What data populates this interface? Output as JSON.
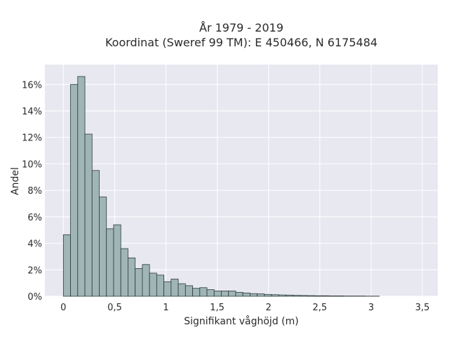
{
  "chart_data": {
    "type": "bar",
    "title": "År 1979 - 2019",
    "subtitle": "Koordinat (Sweref 99 TM): E 450466, N 6175484",
    "xlabel": "Signifikant våghöjd (m)",
    "ylabel": "Andel",
    "xlim": [
      -0.18,
      3.65
    ],
    "ylim": [
      0,
      0.175
    ],
    "grid": true,
    "bin_width": 0.07,
    "bin_start": 0.0,
    "x_ticks": [
      0,
      0.5,
      1,
      1.5,
      2,
      2.5,
      3,
      3.5
    ],
    "x_tick_labels": [
      "0",
      "0,5",
      "1",
      "1,5",
      "2",
      "2,5",
      "3",
      "3,5"
    ],
    "y_ticks": [
      0,
      0.02,
      0.04,
      0.06,
      0.08,
      0.1,
      0.12,
      0.14,
      0.16
    ],
    "y_tick_labels": [
      "0%",
      "2%",
      "4%",
      "6%",
      "8%",
      "10%",
      "12%",
      "14%",
      "16%"
    ],
    "values": [
      0.0465,
      0.16,
      0.166,
      0.1225,
      0.095,
      0.075,
      0.051,
      0.054,
      0.036,
      0.029,
      0.021,
      0.024,
      0.0175,
      0.016,
      0.011,
      0.013,
      0.0095,
      0.008,
      0.006,
      0.0065,
      0.005,
      0.004,
      0.004,
      0.004,
      0.003,
      0.0025,
      0.002,
      0.0018,
      0.0014,
      0.0012,
      0.001,
      0.0009,
      0.0007,
      0.0006,
      0.0005,
      0.0004,
      0.0004,
      0.0003,
      0.0003,
      0.0002,
      0.0002,
      0.0002,
      0.0001,
      0.0001
    ],
    "bar_color": "#9fb5b6",
    "bar_edge": "#2f3a3a",
    "plot_bg": "#e8e8f0",
    "grid_color": "#ffffff"
  }
}
